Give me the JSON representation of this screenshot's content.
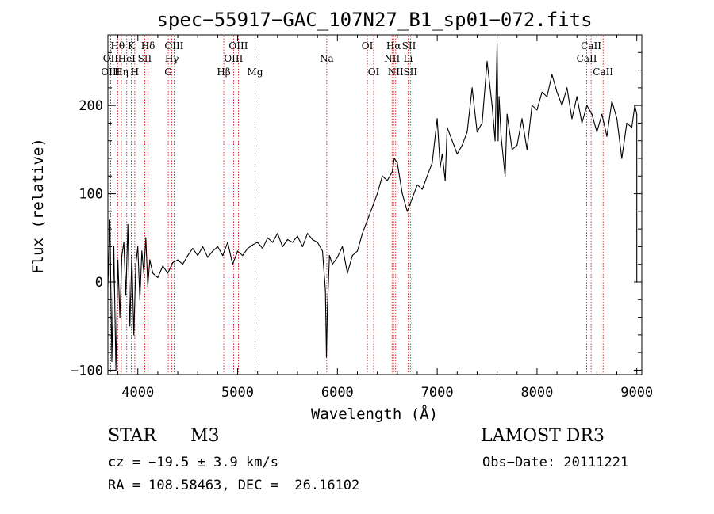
{
  "chart_data": {
    "type": "line",
    "title": "spec−55917−GAC_107N27_B1_sp01−072.fits",
    "xlabel": "Wavelength (Å)",
    "ylabel": "Flux (relative)",
    "xlim": [
      3700,
      9050
    ],
    "ylim": [
      -105,
      280
    ],
    "x_ticks": [
      4000,
      5000,
      6000,
      7000,
      8000,
      9000
    ],
    "y_ticks": [
      -100,
      0,
      100,
      200
    ],
    "x_tick_labels": [
      "4000",
      "5000",
      "6000",
      "7000",
      "8000",
      "9000"
    ],
    "y_tick_labels": [
      "−100",
      "0",
      "100",
      "200"
    ],
    "series": [
      {
        "name": "flux",
        "x": [
          3700,
          3720,
          3740,
          3760,
          3780,
          3800,
          3820,
          3840,
          3860,
          3880,
          3900,
          3920,
          3940,
          3960,
          3980,
          4000,
          4020,
          4040,
          4060,
          4080,
          4100,
          4120,
          4150,
          4200,
          4250,
          4300,
          4350,
          4400,
          4450,
          4500,
          4550,
          4600,
          4650,
          4700,
          4750,
          4800,
          4850,
          4900,
          4950,
          5000,
          5050,
          5100,
          5150,
          5200,
          5250,
          5300,
          5350,
          5400,
          5450,
          5500,
          5550,
          5600,
          5650,
          5700,
          5750,
          5800,
          5850,
          5880,
          5890,
          5900,
          5920,
          5950,
          6000,
          6050,
          6100,
          6150,
          6200,
          6250,
          6300,
          6350,
          6400,
          6450,
          6500,
          6550,
          6570,
          6600,
          6650,
          6700,
          6750,
          6800,
          6850,
          6900,
          6950,
          7000,
          7030,
          7050,
          7080,
          7100,
          7150,
          7200,
          7250,
          7300,
          7350,
          7400,
          7450,
          7500,
          7550,
          7580,
          7600,
          7610,
          7620,
          7640,
          7680,
          7700,
          7750,
          7800,
          7850,
          7900,
          7950,
          8000,
          8050,
          8100,
          8150,
          8200,
          8250,
          8300,
          8350,
          8400,
          8450,
          8500,
          8550,
          8600,
          8650,
          8700,
          8750,
          8800,
          8850,
          8900,
          8950,
          8980,
          9000,
          9000
        ],
        "values": [
          -5,
          70,
          -90,
          40,
          -100,
          25,
          -40,
          30,
          45,
          -15,
          65,
          -50,
          30,
          -60,
          20,
          40,
          -20,
          35,
          10,
          50,
          -5,
          25,
          10,
          5,
          18,
          10,
          22,
          25,
          20,
          30,
          38,
          30,
          40,
          28,
          35,
          40,
          30,
          45,
          20,
          35,
          30,
          38,
          42,
          45,
          38,
          50,
          45,
          55,
          40,
          48,
          45,
          52,
          40,
          55,
          48,
          45,
          35,
          -10,
          -85,
          -30,
          30,
          20,
          28,
          40,
          10,
          30,
          35,
          55,
          70,
          85,
          100,
          120,
          115,
          125,
          140,
          135,
          100,
          80,
          95,
          110,
          105,
          120,
          135,
          185,
          130,
          145,
          115,
          175,
          160,
          145,
          155,
          170,
          220,
          170,
          180,
          250,
          200,
          160,
          270,
          160,
          210,
          165,
          120,
          190,
          150,
          155,
          185,
          150,
          200,
          195,
          215,
          210,
          235,
          215,
          200,
          220,
          185,
          210,
          180,
          200,
          190,
          170,
          190,
          165,
          205,
          185,
          140,
          180,
          175,
          200,
          190,
          0
        ]
      }
    ],
    "lines": [
      {
        "label": "Hθ",
        "x": 3798,
        "row": 1
      },
      {
        "label": "OII",
        "x": 3727,
        "row": 2
      },
      {
        "label": "OIII",
        "x": 3727,
        "row": 3
      },
      {
        "label": "Hη",
        "x": 3835,
        "row": 3
      },
      {
        "label": "K",
        "x": 3934,
        "row": 1
      },
      {
        "label": "HeI",
        "x": 3889,
        "row": 2
      },
      {
        "label": "H",
        "x": 3969,
        "row": 3
      },
      {
        "label": "Hδ",
        "x": 4102,
        "row": 1
      },
      {
        "label": "SII",
        "x": 4069,
        "row": 2
      },
      {
        "label": "OIII",
        "x": 4363,
        "row": 1
      },
      {
        "label": "Hγ",
        "x": 4341,
        "row": 2
      },
      {
        "label": "G",
        "x": 4305,
        "row": 3
      },
      {
        "label": "Hβ",
        "x": 4861,
        "row": 3
      },
      {
        "label": "OIII",
        "x": 5007,
        "row": 1
      },
      {
        "label": "OIII",
        "x": 4959,
        "row": 2
      },
      {
        "label": "Mg",
        "x": 5175,
        "row": 3
      },
      {
        "label": "Na",
        "x": 5893,
        "row": 2
      },
      {
        "label": "OI",
        "x": 6300,
        "row": 1
      },
      {
        "label": "OI",
        "x": 6363,
        "row": 3
      },
      {
        "label": "Hα",
        "x": 6563,
        "row": 1
      },
      {
        "label": "NII",
        "x": 6548,
        "row": 2
      },
      {
        "label": "NII",
        "x": 6584,
        "row": 3
      },
      {
        "label": "SII",
        "x": 6717,
        "row": 1
      },
      {
        "label": "Li",
        "x": 6708,
        "row": 2
      },
      {
        "label": "SII",
        "x": 6731,
        "row": 3
      },
      {
        "label": "CaII",
        "x": 8542,
        "row": 1
      },
      {
        "label": "CaII",
        "x": 8498,
        "row": 2
      },
      {
        "label": "CaII",
        "x": 8662,
        "row": 3
      }
    ]
  },
  "info": {
    "object_class": "STAR",
    "subclass": "M3",
    "survey": "LAMOST DR3",
    "redshift": "cz = −19.5 ± 3.9 km/s",
    "obs_date": "Obs−Date: 20111221",
    "coordinates": "RA = 108.58463, DEC =  26.16102"
  },
  "colors": {
    "axis": "#000000",
    "spectrum": "#000000",
    "line_markers": "#cc0000",
    "background": "#ffffff"
  }
}
